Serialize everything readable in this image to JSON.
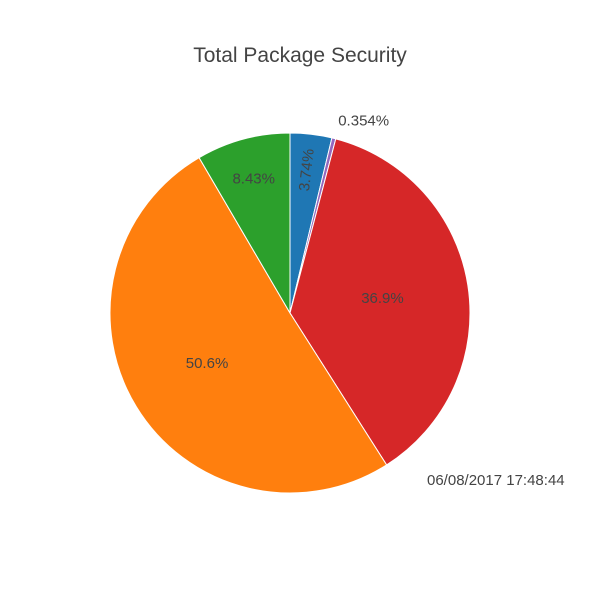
{
  "chart_data": {
    "type": "pie",
    "title": "Total Package Security",
    "slices": [
      {
        "label": "3.74%",
        "value": 3.74,
        "color": "#1f77b4"
      },
      {
        "label": "0.354%",
        "value": 0.354,
        "color": "#9467bd"
      },
      {
        "label": "36.9%",
        "value": 36.9,
        "color": "#d62728"
      },
      {
        "label": "50.6%",
        "value": 50.6,
        "color": "#ff7f0e"
      },
      {
        "label": "8.43%",
        "value": 8.43,
        "color": "#2ca02c"
      }
    ],
    "start": "12 o'clock",
    "direction": "clockwise"
  },
  "annotation": {
    "timestamp": "06/08/2017 17:48:44"
  }
}
